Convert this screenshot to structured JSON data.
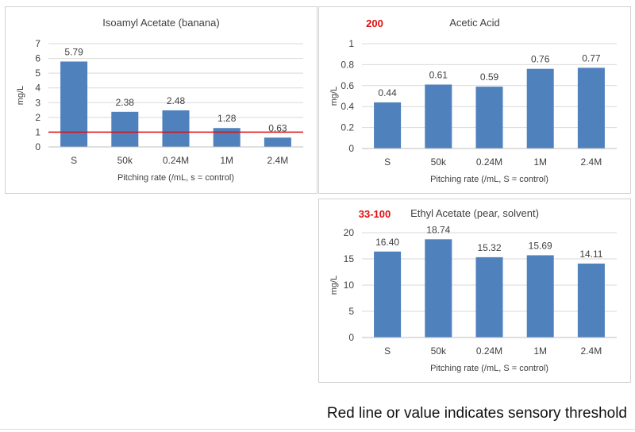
{
  "chart_data": [
    {
      "type": "bar",
      "title": "Isoamyl Acetate (banana)",
      "threshold_label": "",
      "ylabel": "mg/L",
      "xlabel": "Pitching rate (/mL, s = control)",
      "categories": [
        "S",
        "50k",
        "0.24M",
        "1M",
        "2.4M"
      ],
      "values": [
        5.79,
        2.38,
        2.48,
        1.28,
        0.63
      ],
      "value_labels": [
        "5.79",
        "2.38",
        "2.48",
        "1.28",
        "0.63"
      ],
      "yticks": [
        "0",
        "1",
        "2",
        "3",
        "4",
        "5",
        "6",
        "7"
      ],
      "ylim": [
        0,
        7
      ],
      "threshold_line": 1.0,
      "bar_color": "#4f81bd",
      "threshold_color": "#e01010"
    },
    {
      "type": "bar",
      "title": "Acetic Acid",
      "threshold_label": "200",
      "ylabel": "mg/L",
      "xlabel": "Pitching rate (/mL, S = control)",
      "categories": [
        "S",
        "50k",
        "0.24M",
        "1M",
        "2.4M"
      ],
      "values": [
        0.44,
        0.61,
        0.59,
        0.76,
        0.77
      ],
      "value_labels": [
        "0.44",
        "0.61",
        "0.59",
        "0.76",
        "0.77"
      ],
      "yticks": [
        "0",
        "0.2",
        "0.4",
        "0.6",
        "0.8",
        "1"
      ],
      "ylim": [
        0,
        1
      ],
      "bar_color": "#4f81bd",
      "threshold_color": "#e01010"
    },
    {
      "type": "bar",
      "title": "Ethyl Acetate (pear, solvent)",
      "threshold_label": "33-100",
      "ylabel": "mg/L",
      "xlabel": "Pitching rate (/mL, S = control)",
      "categories": [
        "S",
        "50k",
        "0.24M",
        "1M",
        "2.4M"
      ],
      "values": [
        16.4,
        18.74,
        15.32,
        15.69,
        14.11
      ],
      "value_labels": [
        "16.40",
        "18.74",
        "15.32",
        "15.69",
        "14.11"
      ],
      "yticks": [
        "0",
        "5",
        "10",
        "15",
        "20"
      ],
      "ylim": [
        0,
        20
      ],
      "bar_color": "#4f81bd",
      "threshold_color": "#e01010"
    }
  ],
  "footnote": "Red line or value indicates sensory threshold"
}
